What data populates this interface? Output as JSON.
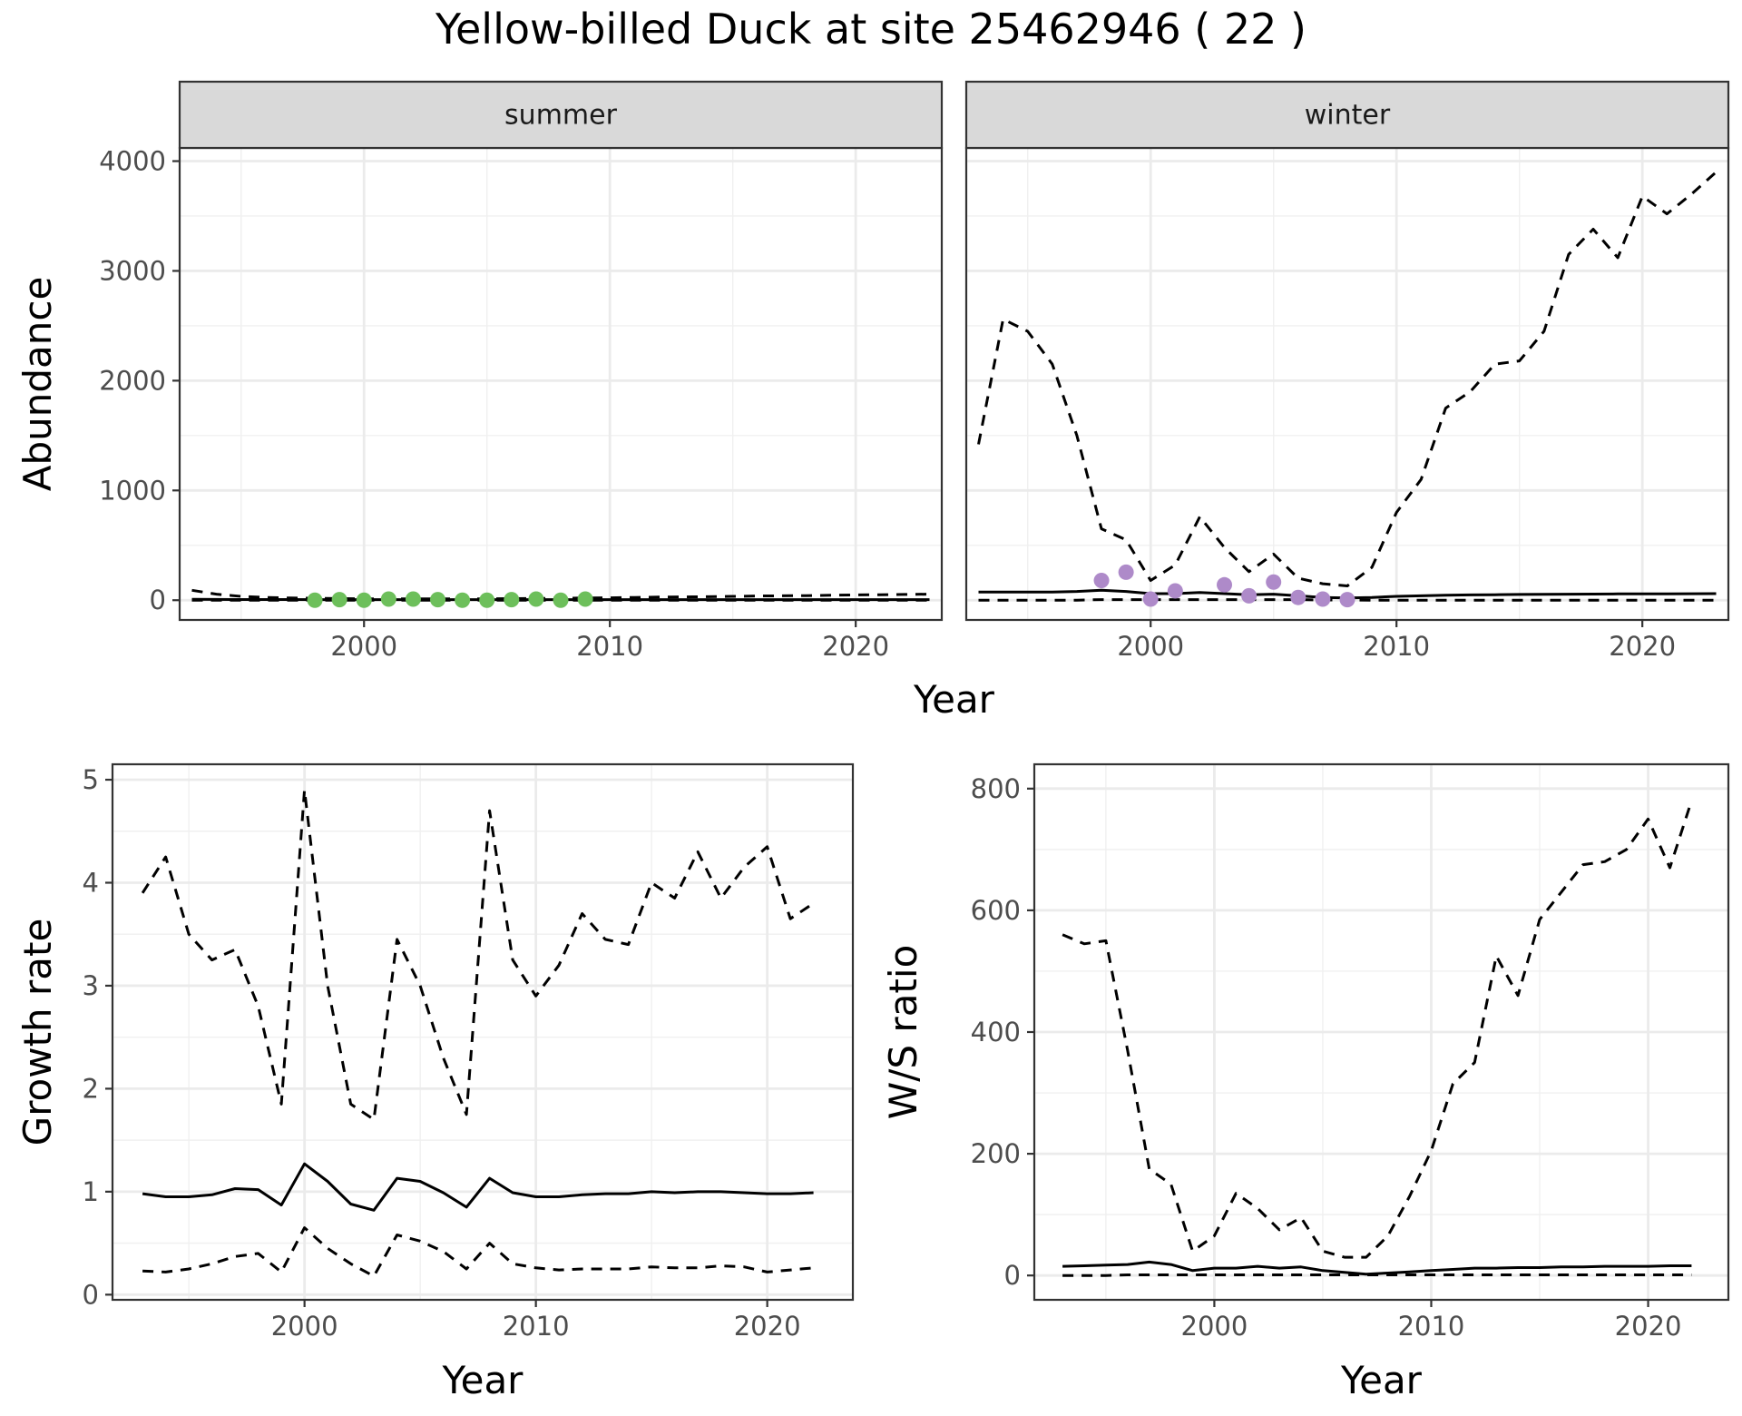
{
  "title": "Yellow-billed Duck at site 25462946 ( 22 )",
  "colors": {
    "summer_points": "#6dbf5b",
    "winter_points": "#ae8ac9",
    "strip_fill": "#d9d9d9",
    "line": "#000000"
  },
  "chart_data": [
    {
      "type": "line",
      "facet": "summer",
      "xlabel": "Year",
      "ylabel": "Abundance",
      "xlim": [
        1992.5,
        2023.5
      ],
      "ylim": [
        -180,
        4120
      ],
      "xticks": [
        2000,
        2010,
        2020
      ],
      "yticks": [
        0,
        1000,
        2000,
        3000,
        4000
      ],
      "grid": true,
      "x": [
        1993,
        1994,
        1995,
        1996,
        1997,
        1998,
        1999,
        2000,
        2001,
        2002,
        2003,
        2004,
        2005,
        2006,
        2007,
        2008,
        2009,
        2010,
        2011,
        2012,
        2013,
        2014,
        2015,
        2016,
        2017,
        2018,
        2019,
        2020,
        2021,
        2022,
        2023
      ],
      "series": [
        {
          "style": "dashed",
          "values": [
            90,
            55,
            35,
            25,
            20,
            18,
            15,
            12,
            12,
            12,
            12,
            12,
            12,
            14,
            16,
            18,
            20,
            22,
            25,
            28,
            30,
            32,
            35,
            38,
            40,
            42,
            45,
            48,
            50,
            52,
            55
          ]
        },
        {
          "style": "solid",
          "values": [
            8,
            7,
            6,
            6,
            6,
            5,
            5,
            5,
            5,
            5,
            5,
            5,
            5,
            5,
            5,
            5,
            5,
            5,
            5,
            5,
            5,
            5,
            5,
            5,
            5,
            5,
            5,
            5,
            5,
            5,
            5
          ]
        },
        {
          "style": "dashed",
          "values": [
            0,
            0,
            0,
            0,
            0,
            0,
            0,
            0,
            0,
            0,
            0,
            0,
            0,
            0,
            0,
            0,
            0,
            0,
            0,
            0,
            0,
            0,
            0,
            0,
            0,
            0,
            0,
            0,
            0,
            0,
            0
          ]
        }
      ],
      "points": {
        "x": [
          1998,
          1999,
          2000,
          2001,
          2002,
          2003,
          2004,
          2005,
          2006,
          2007,
          2008,
          2009
        ],
        "y": [
          0,
          5,
          0,
          10,
          10,
          5,
          0,
          0,
          5,
          10,
          0,
          10
        ]
      }
    },
    {
      "type": "line",
      "facet": "winter",
      "xlabel": "Year",
      "ylabel": "Abundance",
      "xlim": [
        1992.5,
        2023.5
      ],
      "ylim": [
        -180,
        4120
      ],
      "xticks": [
        2000,
        2010,
        2020
      ],
      "yticks": [
        0,
        1000,
        2000,
        3000,
        4000
      ],
      "grid": true,
      "x": [
        1993,
        1994,
        1995,
        1996,
        1997,
        1998,
        1999,
        2000,
        2001,
        2002,
        2003,
        2004,
        2005,
        2006,
        2007,
        2008,
        2009,
        2010,
        2011,
        2012,
        2013,
        2014,
        2015,
        2016,
        2017,
        2018,
        2019,
        2020,
        2021,
        2022,
        2023
      ],
      "series": [
        {
          "style": "dashed",
          "values": [
            1420,
            2560,
            2450,
            2150,
            1500,
            650,
            550,
            180,
            320,
            760,
            480,
            260,
            420,
            200,
            150,
            130,
            300,
            800,
            1100,
            1750,
            1900,
            2150,
            2180,
            2450,
            3150,
            3380,
            3120,
            3680,
            3520,
            3700,
            3900
          ]
        },
        {
          "style": "solid",
          "values": [
            75,
            75,
            75,
            75,
            80,
            90,
            80,
            60,
            60,
            70,
            60,
            50,
            55,
            40,
            25,
            20,
            25,
            35,
            40,
            45,
            48,
            50,
            52,
            54,
            55,
            56,
            57,
            58,
            58,
            59,
            60
          ]
        },
        {
          "style": "dashed",
          "values": [
            0,
            0,
            0,
            0,
            0,
            5,
            5,
            5,
            5,
            5,
            5,
            5,
            5,
            5,
            2,
            2,
            0,
            0,
            0,
            0,
            0,
            0,
            0,
            0,
            0,
            0,
            0,
            0,
            0,
            0,
            0
          ]
        }
      ],
      "points": {
        "x": [
          1998,
          1999,
          2000,
          2001,
          2003,
          2004,
          2005,
          2006,
          2007,
          2008
        ],
        "y": [
          180,
          255,
          10,
          85,
          140,
          40,
          165,
          25,
          10,
          5
        ]
      }
    },
    {
      "type": "line",
      "xlabel": "Year",
      "ylabel": "Growth rate",
      "xlim": [
        1991.7,
        2023.7
      ],
      "ylim": [
        -0.05,
        5.15
      ],
      "xticks": [
        2000,
        2010,
        2020
      ],
      "yticks": [
        0,
        1,
        2,
        3,
        4,
        5
      ],
      "grid": true,
      "x": [
        1993,
        1994,
        1995,
        1996,
        1997,
        1998,
        1999,
        2000,
        2001,
        2002,
        2003,
        2004,
        2005,
        2006,
        2007,
        2008,
        2009,
        2010,
        2011,
        2012,
        2013,
        2014,
        2015,
        2016,
        2017,
        2018,
        2019,
        2020,
        2021,
        2022
      ],
      "series": [
        {
          "style": "dashed",
          "values": [
            3.9,
            4.25,
            3.5,
            3.25,
            3.35,
            2.8,
            1.85,
            4.9,
            3.0,
            1.85,
            1.7,
            3.45,
            3.0,
            2.3,
            1.75,
            4.7,
            3.25,
            2.9,
            3.2,
            3.7,
            3.45,
            3.4,
            4.0,
            3.85,
            4.3,
            3.85,
            4.15,
            4.35,
            3.65,
            3.8
          ]
        },
        {
          "style": "solid",
          "values": [
            0.98,
            0.95,
            0.95,
            0.97,
            1.03,
            1.02,
            0.87,
            1.27,
            1.1,
            0.88,
            0.82,
            1.13,
            1.1,
            0.99,
            0.85,
            1.13,
            0.99,
            0.95,
            0.95,
            0.97,
            0.98,
            0.98,
            1.0,
            0.99,
            1.0,
            1.0,
            0.99,
            0.98,
            0.98,
            0.99
          ]
        },
        {
          "style": "dashed",
          "values": [
            0.23,
            0.22,
            0.25,
            0.3,
            0.37,
            0.4,
            0.22,
            0.65,
            0.45,
            0.3,
            0.18,
            0.58,
            0.52,
            0.42,
            0.25,
            0.5,
            0.3,
            0.26,
            0.24,
            0.25,
            0.25,
            0.25,
            0.27,
            0.26,
            0.26,
            0.28,
            0.27,
            0.22,
            0.24,
            0.26
          ]
        }
      ]
    },
    {
      "type": "line",
      "xlabel": "Year",
      "ylabel": "W/S ratio",
      "xlim": [
        1991.7,
        2023.7
      ],
      "ylim": [
        -40,
        840
      ],
      "xticks": [
        2000,
        2010,
        2020
      ],
      "yticks": [
        0,
        200,
        400,
        600,
        800
      ],
      "grid": true,
      "x": [
        1993,
        1994,
        1995,
        1996,
        1997,
        1998,
        1999,
        2000,
        2001,
        2002,
        2003,
        2004,
        2005,
        2006,
        2007,
        2008,
        2009,
        2010,
        2011,
        2012,
        2013,
        2014,
        2015,
        2016,
        2017,
        2018,
        2019,
        2020,
        2021,
        2022
      ],
      "series": [
        {
          "style": "dashed",
          "values": [
            560,
            545,
            550,
            370,
            175,
            150,
            40,
            65,
            135,
            110,
            75,
            95,
            40,
            30,
            30,
            65,
            130,
            205,
            315,
            350,
            525,
            460,
            585,
            630,
            675,
            680,
            700,
            750,
            670,
            780
          ]
        },
        {
          "style": "solid",
          "values": [
            15,
            16,
            17,
            18,
            22,
            18,
            8,
            12,
            12,
            15,
            12,
            14,
            8,
            5,
            2,
            4,
            6,
            8,
            10,
            12,
            12,
            13,
            13,
            14,
            14,
            15,
            15,
            15,
            16,
            16
          ]
        },
        {
          "style": "dashed",
          "values": [
            0,
            0,
            0,
            1,
            1,
            1,
            1,
            1,
            1,
            1,
            1,
            1,
            1,
            1,
            1,
            1,
            1,
            1,
            1,
            1,
            1,
            1,
            1,
            1,
            1,
            1,
            1,
            1,
            1,
            1
          ]
        }
      ]
    }
  ]
}
